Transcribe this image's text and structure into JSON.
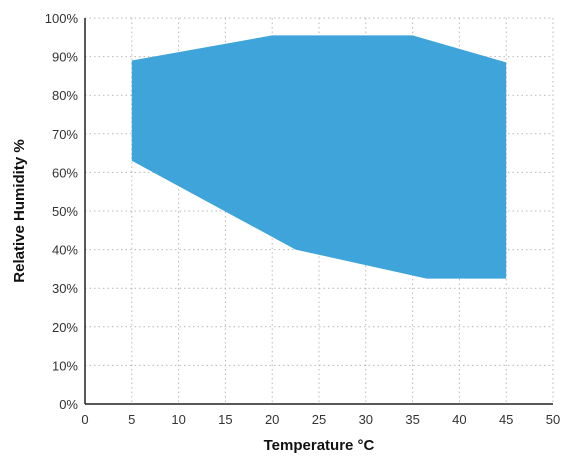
{
  "chart_data": {
    "type": "area",
    "title": "",
    "xlabel": "Temperature °C",
    "ylabel": "Relative Humidity %",
    "xlim": [
      0,
      50
    ],
    "ylim": [
      0,
      100
    ],
    "x_ticks": [
      0,
      5,
      10,
      15,
      20,
      25,
      30,
      35,
      40,
      45,
      50
    ],
    "y_ticks": [
      0,
      10,
      20,
      30,
      40,
      50,
      60,
      70,
      80,
      90,
      100
    ],
    "x_tick_labels": [
      "0",
      "5",
      "10",
      "15",
      "20",
      "25",
      "30",
      "35",
      "40",
      "45",
      "50"
    ],
    "y_tick_labels": [
      "0%",
      "10%",
      "20%",
      "30%",
      "40%",
      "50%",
      "60%",
      "70%",
      "80%",
      "90%",
      "100%"
    ],
    "grid": true,
    "fill_color": "#3FA4DA",
    "upper_boundary": [
      {
        "x": 5,
        "y": 89
      },
      {
        "x": 20,
        "y": 95.5
      },
      {
        "x": 35,
        "y": 95.5
      },
      {
        "x": 45,
        "y": 88.5
      }
    ],
    "lower_boundary": [
      {
        "x": 5,
        "y": 63
      },
      {
        "x": 22.5,
        "y": 40
      },
      {
        "x": 36.5,
        "y": 32.5
      },
      {
        "x": 45,
        "y": 32.5
      }
    ]
  }
}
